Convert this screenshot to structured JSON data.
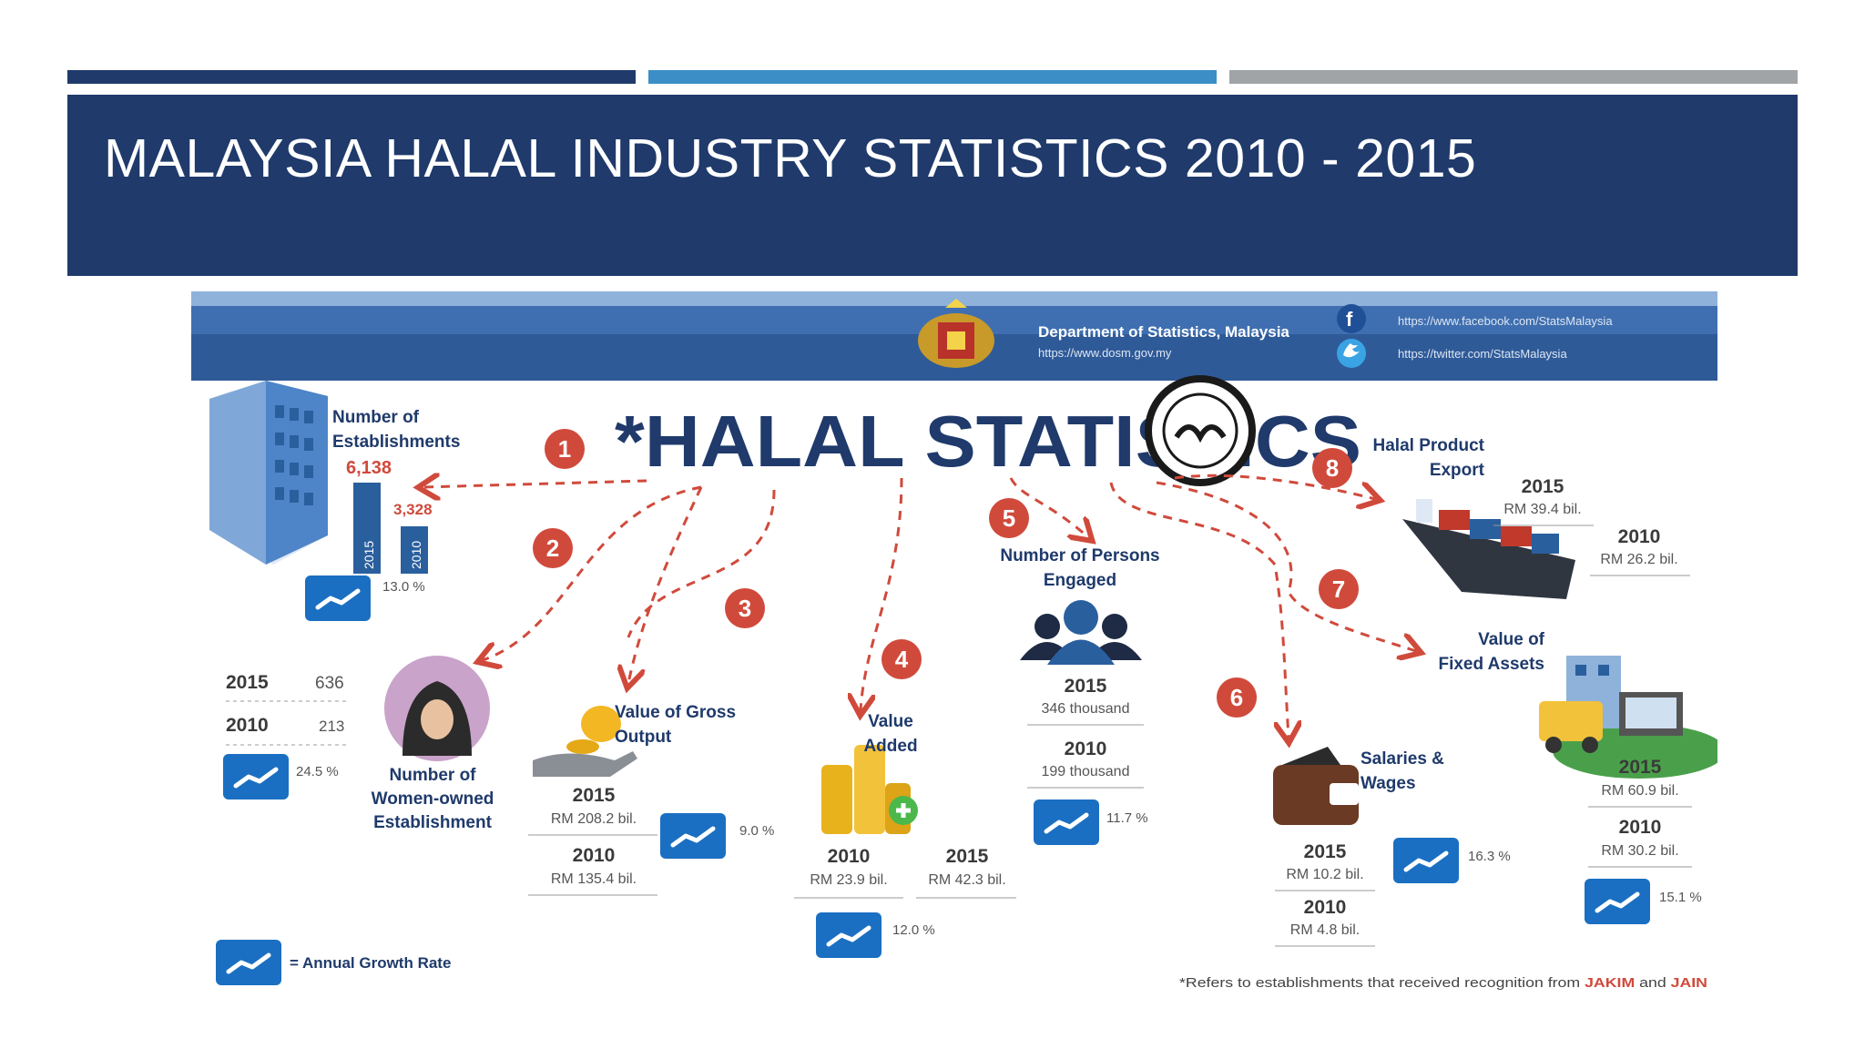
{
  "slide": {
    "title": "MALAYSIA HALAL INDUSTRY STATISTICS 2010 - 2015"
  },
  "colors": {
    "bar1": "#1f3a6b",
    "bar2": "#3b8fc6",
    "bar3": "#a0a4a6",
    "title_bg": "#1f3a6b",
    "accent_red": "#d04a3c",
    "growth_icon": "#1a6fc2"
  },
  "infographic": {
    "header": {
      "org": "Department of Statistics, Malaysia",
      "website": "https://www.dosm.gov.my",
      "facebook": "https://www.facebook.com/StatsMalaysia",
      "twitter": "https://twitter.com/StatsMalaysia"
    },
    "title": "*HALAL STATISTICS",
    "establishments": {
      "label1": "Number of",
      "label2": "Establishments",
      "value_2015": "6,138",
      "value_2010": "3,328",
      "bar_2015": "2015",
      "bar_2010": "2010",
      "growth": "13.0 %"
    },
    "women": {
      "label1": "Number of",
      "label2": "Women-owned",
      "label3": "Establishment",
      "year_2015": "2015",
      "value_2015": "636",
      "year_2010": "2010",
      "value_2010": "213",
      "growth": "24.5 %"
    },
    "gross_output": {
      "label1": "Value of Gross",
      "label2": "Output",
      "year_2015": "2015",
      "value_2015": "RM 208.2 bil.",
      "year_2010": "2010",
      "value_2010": "RM 135.4 bil.",
      "growth": "9.0 %"
    },
    "value_added": {
      "label1": "Value",
      "label2": "Added",
      "year_2010": "2010",
      "value_2010": "RM 23.9 bil.",
      "year_2015": "2015",
      "value_2015": "RM 42.3 bil.",
      "growth": "12.0 %"
    },
    "persons": {
      "label1": "Number of Persons",
      "label2": "Engaged",
      "year_2015": "2015",
      "value_2015": "346 thousand",
      "year_2010": "2010",
      "value_2010": "199 thousand",
      "growth": "11.7 %"
    },
    "salaries": {
      "label1": "Salaries &",
      "label2": "Wages",
      "year_2015": "2015",
      "value_2015": "RM 10.2 bil.",
      "year_2010": "2010",
      "value_2010": "RM 4.8 bil.",
      "growth": "16.3 %"
    },
    "fixed_assets": {
      "label1": "Value of",
      "label2": "Fixed Assets",
      "year_2015": "2015",
      "value_2015": "RM 60.9 bil.",
      "year_2010": "2010",
      "value_2010": "RM 30.2 bil.",
      "growth": "15.1 %"
    },
    "export": {
      "label1": "Halal Product",
      "label2": "Export",
      "year_2015": "2015",
      "value_2015": "RM 39.4 bil.",
      "year_2010": "2010",
      "value_2010": "RM 26.2 bil."
    },
    "numbers": [
      "1",
      "2",
      "3",
      "4",
      "5",
      "6",
      "7",
      "8"
    ],
    "legend": "= Annual Growth Rate",
    "footnote_prefix": "*Refers to establishments that received recognition from",
    "footnote_jakim": "JAKIM",
    "footnote_and": "and",
    "footnote_jain": "JAIN",
    "icons": [
      "coat-of-arms",
      "facebook-icon",
      "twitter-icon",
      "halal-logo",
      "building-icon",
      "woman-icon",
      "coin-hand-icon",
      "coins-stack-icon",
      "people-icon",
      "wallet-icon",
      "ship-icon",
      "truck-assets-icon",
      "growth-rate-icon"
    ]
  }
}
